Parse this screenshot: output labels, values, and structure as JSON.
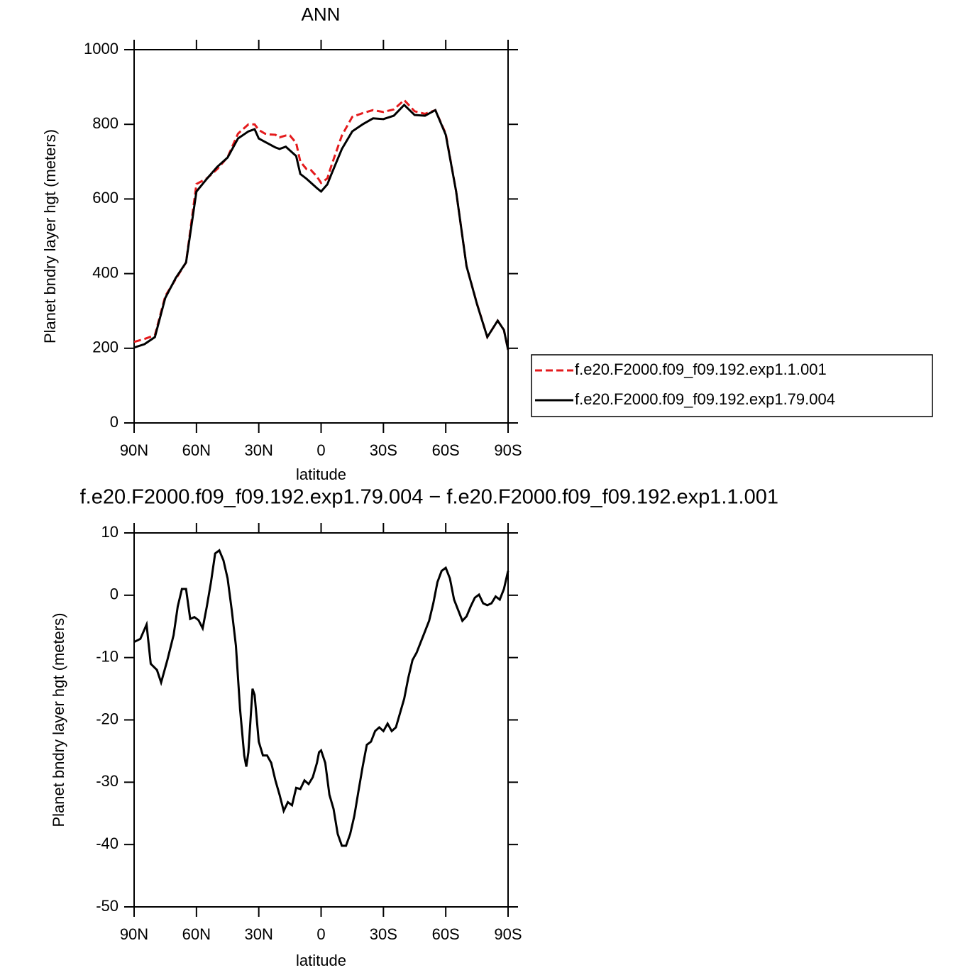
{
  "chart_data": [
    {
      "type": "line",
      "title": "ANN",
      "xlabel": "latitude",
      "ylabel": "Planet bndry layer hgt (meters)",
      "x": [
        90,
        85,
        80,
        75,
        70,
        65,
        60,
        55,
        50,
        45,
        40,
        35,
        32,
        30,
        27,
        25,
        22,
        20,
        17,
        15,
        12,
        10,
        7,
        5,
        2,
        0,
        -3,
        -5,
        -10,
        -15,
        -20,
        -25,
        -30,
        -35,
        -40,
        -45,
        -50,
        -55,
        -60,
        -65,
        -70,
        -75,
        -80,
        -85,
        -88,
        -90
      ],
      "series": [
        {
          "name": "f.e20.F2000.f09_f09.192.exp1.1.001",
          "color": "#e41a1c",
          "line_style": "dashed",
          "values": [
            217,
            225,
            235,
            340,
            385,
            430,
            640,
            655,
            680,
            712,
            775,
            800,
            800,
            785,
            775,
            773,
            772,
            765,
            770,
            770,
            750,
            700,
            680,
            678,
            660,
            643,
            655,
            690,
            770,
            820,
            830,
            838,
            833,
            840,
            865,
            835,
            828,
            838,
            775,
            620,
            420,
            320,
            230,
            274,
            249,
            196
          ]
        },
        {
          "name": "f.e20.F2000.f09_f09.192.exp1.79.004",
          "color": "#000000",
          "line_style": "solid",
          "values": [
            202,
            211,
            230,
            335,
            388,
            430,
            620,
            654,
            686,
            711,
            762,
            781,
            787,
            762,
            753,
            747,
            738,
            734,
            740,
            730,
            715,
            667,
            654,
            644,
            629,
            620,
            639,
            667,
            734,
            781,
            800,
            816,
            814,
            823,
            852,
            825,
            823,
            838,
            772,
            620,
            420,
            319,
            230,
            274,
            249,
            196
          ]
        }
      ],
      "xlim": [
        90,
        -90
      ],
      "xticks": [
        {
          "value": 90,
          "label": "90N"
        },
        {
          "value": 60,
          "label": "60N"
        },
        {
          "value": 30,
          "label": "30N"
        },
        0,
        {
          "value": -30,
          "label": "30S"
        },
        {
          "value": -60,
          "label": "60S"
        },
        {
          "value": -90,
          "label": "90S"
        }
      ],
      "ylim": [
        0,
        1000
      ],
      "yticks": [
        0,
        200,
        400,
        600,
        800,
        1000
      ],
      "legend": "right"
    },
    {
      "type": "line",
      "title": "f.e20.F2000.f09_f09.192.exp1.79.004 − f.e20.F2000.f09_f09.192.exp1.1.001",
      "xlabel": "latitude",
      "ylabel": "Planet bndry layer hgt (meters)",
      "x": [
        90,
        87,
        84,
        82,
        79,
        77,
        74,
        71,
        69,
        67,
        65,
        63,
        61,
        59,
        57,
        55,
        53,
        51,
        49,
        47,
        45,
        43,
        41,
        39,
        37,
        36,
        35,
        33,
        32,
        30,
        28,
        26,
        24,
        22,
        20,
        18,
        16,
        14,
        12,
        10,
        8,
        6,
        4,
        2,
        1,
        0,
        -2,
        -4,
        -6,
        -8,
        -10,
        -12,
        -14,
        -16,
        -18,
        -20,
        -22,
        -24,
        -26,
        -28,
        -30,
        -32,
        -34,
        -36,
        -38,
        -40,
        -42,
        -44,
        -46,
        -48,
        -50,
        -52,
        -54,
        -56,
        -58,
        -60,
        -62,
        -64,
        -66,
        -68,
        -70,
        -72,
        -74,
        -76,
        -78,
        -80,
        -82,
        -84,
        -86,
        -88,
        -90
      ],
      "series": [
        {
          "color": "#000000",
          "line_style": "solid",
          "values": [
            -7.5,
            -7,
            -4.7,
            -11,
            -12,
            -14,
            -10.4,
            -6.4,
            -1.8,
            1,
            1,
            -3.8,
            -3.5,
            -4,
            -5.3,
            -1.8,
            2.1,
            6.7,
            7.2,
            5.6,
            2.7,
            -2.4,
            -8.1,
            -18.3,
            -25.7,
            -27.5,
            -25.2,
            -15,
            -16,
            -23.5,
            -25.7,
            -25.7,
            -26.9,
            -29.7,
            -32,
            -34.6,
            -33.2,
            -33.7,
            -30.9,
            -31.1,
            -29.7,
            -30.3,
            -29.2,
            -26.9,
            -25.2,
            -24.9,
            -26.9,
            -32,
            -34.3,
            -38.3,
            -40.2,
            -40.2,
            -38.3,
            -35.4,
            -31.4,
            -27.5,
            -24,
            -23.5,
            -21.8,
            -21.2,
            -21.8,
            -20.6,
            -21.8,
            -21.2,
            -18.9,
            -16.6,
            -13.2,
            -10.4,
            -9.2,
            -7.5,
            -5.8,
            -4.1,
            -1.3,
            2.1,
            3.9,
            4.4,
            2.7,
            -0.7,
            -2.4,
            -4.1,
            -3.4,
            -1.8,
            -0.4,
            0.1,
            -1.3,
            -1.6,
            -1.3,
            -0.2,
            -0.7,
            1,
            3.9
          ]
        }
      ],
      "xlim": [
        90,
        -90
      ],
      "xticks": [
        {
          "value": 90,
          "label": "90N"
        },
        {
          "value": 60,
          "label": "60N"
        },
        {
          "value": 30,
          "label": "30N"
        },
        0,
        {
          "value": -30,
          "label": "30S"
        },
        {
          "value": -60,
          "label": "60S"
        },
        {
          "value": -90,
          "label": "90S"
        }
      ],
      "ylim": [
        -50,
        10
      ],
      "yticks": [
        -50,
        -40,
        -30,
        -20,
        -10,
        0,
        10
      ]
    }
  ]
}
